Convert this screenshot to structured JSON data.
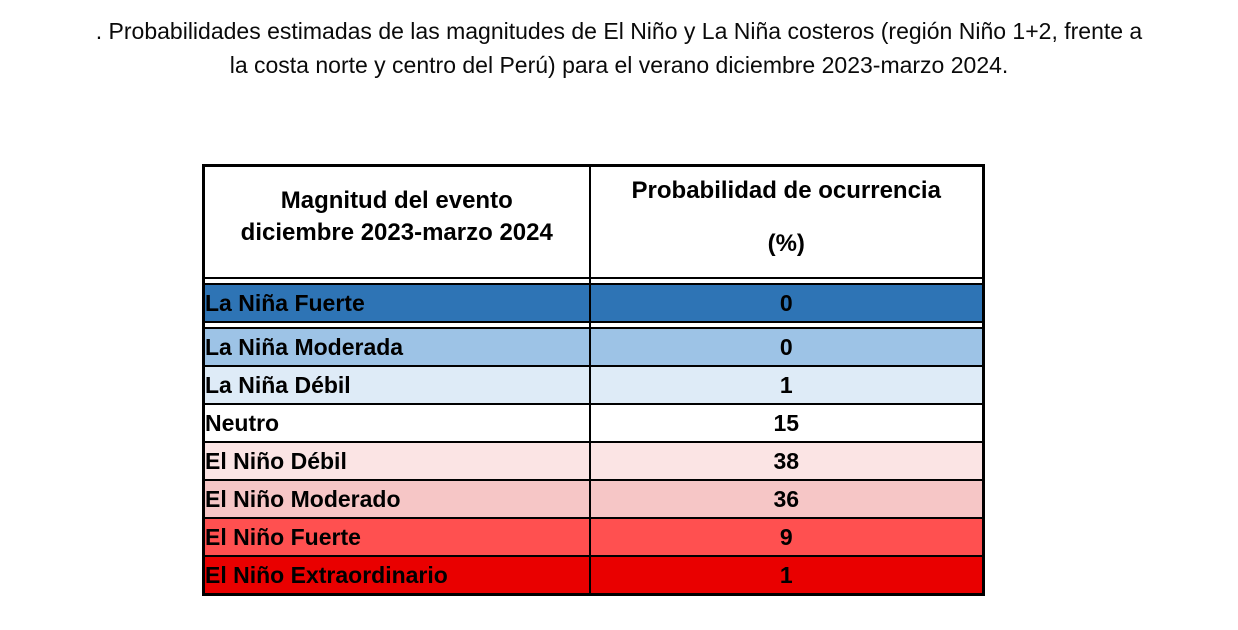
{
  "caption": {
    "line1": ". Probabilidades estimadas de las magnitudes de El Niño y La Niña costeros (región Niño 1+2, frente a",
    "line2": "la costa norte y centro del Perú) para el verano diciembre 2023-marzo 2024."
  },
  "table": {
    "headers": {
      "col1_line1": "Magnitud del evento",
      "col1_line2": "diciembre 2023-marzo 2024",
      "col2_line1": "Probabilidad de ocurrencia",
      "col2_line2": "(%)"
    },
    "rows": [
      {
        "label": "La Niña Fuerte",
        "value": "0",
        "color": "#2E74B5"
      },
      {
        "label": "La Niña Moderada",
        "value": "0",
        "color": "#9DC3E6"
      },
      {
        "label": "La Niña Débil",
        "value": "1",
        "color": "#DEEBF7"
      },
      {
        "label": "Neutro",
        "value": "15",
        "color": "#FFFFFF"
      },
      {
        "label": "El Niño Débil",
        "value": "38",
        "color": "#FBE4E4"
      },
      {
        "label": "El Niño Moderado",
        "value": "36",
        "color": "#F6C6C6"
      },
      {
        "label": "El Niño Fuerte",
        "value": "9",
        "color": "#FF5050"
      },
      {
        "label": "El Niño Extraordinario",
        "value": "1",
        "color": "#E90000"
      }
    ]
  },
  "chart_data": {
    "type": "table",
    "title": "Probabilidades estimadas de las magnitudes de El Niño y La Niña costeros (región Niño 1+2, frente a la costa norte y centro del Perú) para el verano diciembre 2023-marzo 2024.",
    "columns": [
      "Magnitud del evento diciembre 2023-marzo 2024",
      "Probabilidad de ocurrencia (%)"
    ],
    "categories": [
      "La Niña Fuerte",
      "La Niña Moderada",
      "La Niña Débil",
      "Neutro",
      "El Niño Débil",
      "El Niño Moderado",
      "El Niño Fuerte",
      "El Niño Extraordinario"
    ],
    "values": [
      0,
      0,
      1,
      15,
      38,
      36,
      9,
      1
    ],
    "row_colors": [
      "#2E74B5",
      "#9DC3E6",
      "#DEEBF7",
      "#FFFFFF",
      "#FBE4E4",
      "#F6C6C6",
      "#FF5050",
      "#E90000"
    ]
  }
}
